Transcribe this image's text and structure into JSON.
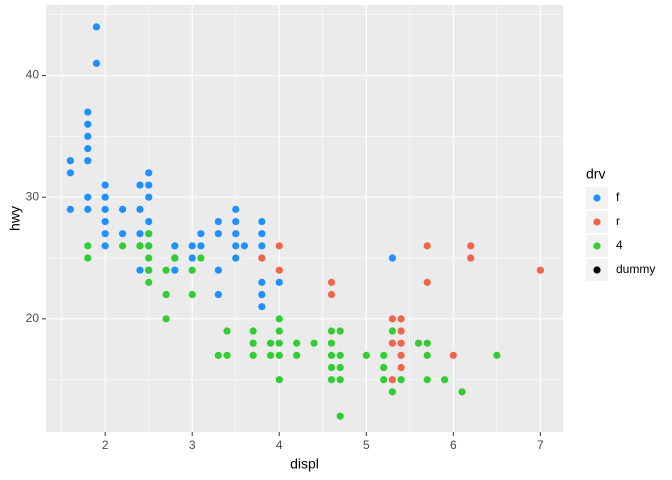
{
  "chart_data": {
    "type": "scatter",
    "x_label": "displ",
    "y_label": "hwy",
    "legend_title": "drv",
    "xlim": [
      1.32,
      7.26
    ],
    "ylim": [
      10.7,
      45.8
    ],
    "xticks": [
      2,
      3,
      4,
      5,
      6,
      7
    ],
    "yticks": [
      20,
      30,
      40
    ],
    "grid": true,
    "legend_position": "right",
    "series": [
      {
        "name": "f",
        "color": "#1E90FF",
        "x": [
          1.9,
          1.9,
          1.6,
          1.6,
          1.6,
          1.8,
          1.8,
          1.8,
          1.8,
          1.8,
          1.8,
          1.8,
          2.0,
          2.0,
          2.0,
          2.0,
          2.0,
          2.0,
          2.2,
          2.2,
          2.4,
          2.4,
          2.4,
          2.4,
          2.4,
          2.5,
          2.5,
          2.5,
          2.5,
          2.5,
          2.5,
          2.5,
          2.8,
          2.8,
          2.8,
          3.0,
          3.0,
          3.1,
          3.1,
          3.3,
          3.3,
          3.3,
          3.3,
          3.5,
          3.5,
          3.5,
          3.5,
          3.5,
          3.6,
          3.8,
          3.8,
          3.8,
          3.8,
          3.8,
          3.8,
          4.0,
          5.3
        ],
        "values": [
          44,
          41,
          33,
          32,
          29,
          37,
          36,
          35,
          34,
          33,
          30,
          29,
          31,
          30,
          29,
          28,
          27,
          26,
          29,
          27,
          31,
          29,
          27,
          26,
          24,
          32,
          31,
          30,
          28,
          27,
          26,
          24,
          26,
          25,
          24,
          26,
          25,
          27,
          26,
          28,
          27,
          24,
          22,
          29,
          28,
          27,
          26,
          25,
          26,
          28,
          27,
          26,
          23,
          22,
          21,
          23,
          25
        ]
      },
      {
        "name": "r",
        "color": "#F0644B",
        "x": [
          3.8,
          4.0,
          4.0,
          4.6,
          4.6,
          5.3,
          5.3,
          5.3,
          5.4,
          5.4,
          5.4,
          5.4,
          5.4,
          5.7,
          5.7,
          6.0,
          6.2,
          6.2,
          7.0
        ],
        "values": [
          25,
          26,
          24,
          23,
          22,
          20,
          18,
          15,
          20,
          19,
          18,
          17,
          16,
          26,
          23,
          17,
          26,
          25,
          24
        ]
      },
      {
        "name": "4",
        "color": "#32CD32",
        "x": [
          1.8,
          1.8,
          2.2,
          2.4,
          2.5,
          2.5,
          2.5,
          2.5,
          2.5,
          2.7,
          2.7,
          2.7,
          2.8,
          3.0,
          3.0,
          3.1,
          3.3,
          3.4,
          3.4,
          3.7,
          3.7,
          3.7,
          3.9,
          3.9,
          4.0,
          4.0,
          4.0,
          4.0,
          4.0,
          4.2,
          4.2,
          4.4,
          4.6,
          4.6,
          4.6,
          4.6,
          4.6,
          4.7,
          4.7,
          4.7,
          4.7,
          4.7,
          5.0,
          5.2,
          5.2,
          5.2,
          5.3,
          5.3,
          5.4,
          5.6,
          5.7,
          5.7,
          5.7,
          5.9,
          6.1,
          6.5
        ],
        "values": [
          26,
          25,
          26,
          26,
          27,
          26,
          25,
          24,
          23,
          24,
          22,
          20,
          25,
          24,
          22,
          25,
          17,
          19,
          17,
          19,
          18,
          17,
          18,
          17,
          20,
          19,
          18,
          17,
          15,
          18,
          17,
          18,
          19,
          18,
          17,
          16,
          15,
          19,
          17,
          16,
          15,
          12,
          17,
          17,
          16,
          15,
          19,
          14,
          15,
          18,
          18,
          17,
          15,
          15,
          14,
          17
        ]
      },
      {
        "name": "dummy",
        "color": "#000000",
        "x": [],
        "values": []
      }
    ]
  }
}
